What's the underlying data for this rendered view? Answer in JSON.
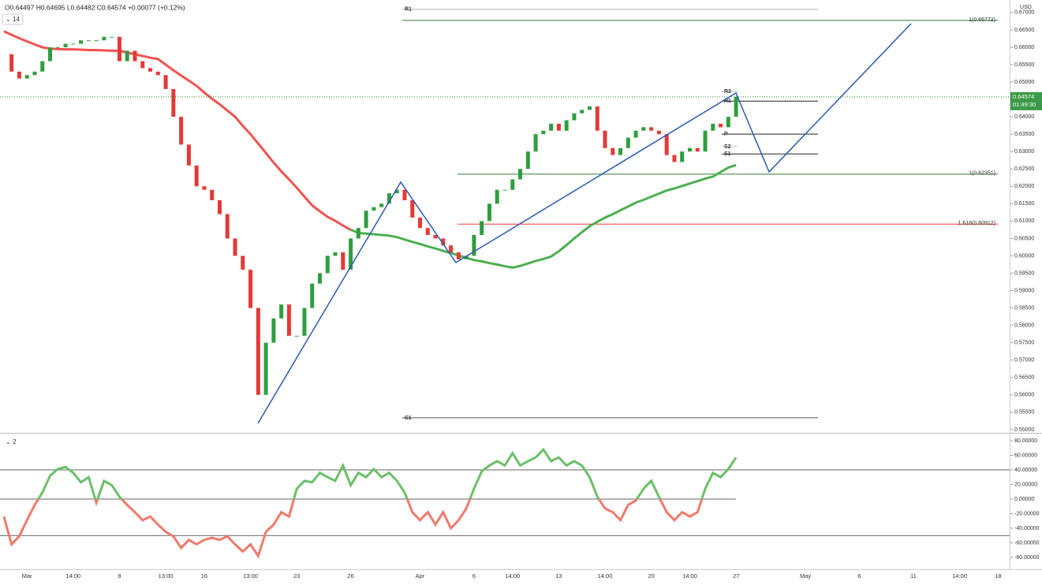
{
  "header": {
    "ohlc": "O0.64497 H0.64695 L0.64482 C0.64574 +0.00077 (+0.12%)",
    "pane1_label": "14",
    "pane2_label": "2"
  },
  "chart_data": [
    {
      "type": "candlestick",
      "categories": [
        null,
        null,
        null,
        "Mar",
        null,
        null,
        null,
        null,
        null,
        "14:00",
        null,
        null,
        null,
        null,
        null,
        "9",
        null,
        null,
        null,
        null,
        null,
        "13:00",
        null,
        null,
        null,
        null,
        "16",
        null,
        null,
        null,
        null,
        null,
        "13:00",
        null,
        null,
        null,
        null,
        null,
        "23",
        null,
        null,
        null,
        null,
        null,
        null,
        "26",
        null,
        null,
        null,
        null,
        null,
        null,
        null,
        null,
        "Apr",
        null,
        null,
        null,
        null,
        null,
        null,
        "6",
        null,
        null,
        null,
        null,
        "14:00",
        null,
        null,
        null,
        null,
        null,
        "13",
        null,
        null,
        null,
        null,
        null,
        "14:00",
        null,
        null,
        null,
        null,
        null,
        "20",
        null,
        null,
        null,
        null,
        "14:00",
        null,
        null,
        null,
        null,
        null,
        "27",
        null,
        null,
        null,
        null,
        null,
        null,
        null,
        null,
        "May",
        null,
        null,
        null,
        null,
        null,
        null,
        "6",
        null,
        null,
        null,
        null,
        null,
        null,
        "11",
        null,
        null,
        null,
        null,
        null,
        "14:00",
        null,
        null,
        null,
        null,
        "18",
        null
      ],
      "up_color": "#2e9e3e",
      "down_color": "#e53935",
      "series": [
        {
          "values": [
            0.658,
            0.653,
            0.651,
            0.652,
            0.653,
            0.656,
            0.66,
            0.66,
            0.661,
            0.661,
            0.662,
            0.662,
            0.662,
            0.663,
            0.663,
            0.656,
            0.659,
            0.656,
            0.654,
            0.653,
            0.652,
            0.648,
            0.64,
            0.632,
            0.626,
            0.62,
            0.619,
            0.616,
            0.612,
            0.605,
            0.6,
            0.596,
            0.585,
            0.56,
            0.575,
            0.582,
            0.586,
            0.577,
            0.577,
            0.585,
            0.592,
            0.595,
            0.6,
            0.601,
            0.596,
            0.605,
            0.608,
            0.613,
            0.614,
            0.615,
            0.618,
            0.619,
            0.616,
            0.611,
            0.608,
            0.606,
            0.605,
            0.603,
            0.601,
            0.599,
            0.6,
            0.606,
            0.61,
            0.615,
            0.619,
            0.619,
            0.622,
            0.625,
            0.63,
            0.635,
            0.636,
            0.638,
            0.636,
            0.639,
            0.641,
            0.642,
            0.643,
            0.636,
            0.631,
            0.629,
            0.631,
            0.634,
            0.636,
            0.637,
            0.636,
            0.635,
            0.629,
            0.627,
            0.63,
            0.631,
            0.63,
            0.636,
            0.638,
            0.637,
            0.64,
            0.6457,
            null,
            null,
            null,
            null,
            null,
            null,
            null,
            null,
            null,
            null,
            null,
            null,
            null,
            null,
            null,
            null,
            null,
            null,
            null,
            null,
            null,
            null,
            null,
            null,
            null,
            null,
            null,
            null,
            null,
            null,
            null,
            null,
            null,
            null,
            null
          ]
        },
        {
          "color": "#ef5350",
          "values": [
            0.6646,
            0.6636,
            0.6626,
            0.6617,
            0.6608,
            0.66,
            0.6596,
            0.6595,
            0.6594,
            0.6594,
            0.6593,
            0.6592,
            0.6592,
            0.6591,
            0.659,
            0.659,
            0.6585,
            0.658,
            0.6575,
            0.657,
            0.6566,
            0.655,
            0.6534,
            0.6519,
            0.6504,
            0.6489,
            0.647,
            0.6452,
            0.6436,
            0.6418,
            0.64,
            0.6374,
            0.635,
            0.6323,
            0.6296,
            0.6268,
            0.6243,
            0.622,
            0.6196,
            0.617,
            0.6145,
            0.6128,
            0.6112,
            0.6101,
            0.6087,
            0.6075,
            null,
            null,
            null,
            null,
            null,
            null,
            null,
            null,
            null,
            null,
            null,
            null,
            null,
            null,
            null,
            null,
            null,
            null,
            null,
            null,
            null,
            null,
            null,
            null,
            null,
            null,
            null,
            null,
            null,
            null,
            null,
            null,
            null,
            null,
            null,
            null,
            null,
            null,
            null,
            null,
            null,
            null,
            null,
            null,
            null,
            null,
            null,
            null,
            null,
            null,
            null,
            null,
            null,
            null,
            null,
            null,
            null,
            null,
            null,
            null,
            null,
            null,
            null,
            null,
            null,
            null,
            null,
            null,
            null,
            null,
            null,
            null,
            null,
            null,
            null,
            null,
            null,
            null,
            null,
            null,
            null,
            null,
            null,
            null,
            null
          ]
        },
        {
          "color": "#4caf50",
          "values": [
            null,
            null,
            null,
            null,
            null,
            null,
            null,
            null,
            null,
            null,
            null,
            null,
            null,
            null,
            null,
            null,
            null,
            null,
            null,
            null,
            null,
            null,
            null,
            null,
            null,
            null,
            null,
            null,
            null,
            null,
            null,
            null,
            null,
            null,
            null,
            null,
            null,
            null,
            null,
            null,
            null,
            null,
            null,
            null,
            null,
            0.6075,
            0.6066,
            0.6064,
            0.6062,
            0.606,
            0.6058,
            0.6054,
            0.6047,
            0.604,
            0.6034,
            0.6027,
            0.6021,
            0.6014,
            0.6008,
            0.6001,
            0.5994,
            0.5988,
            0.5984,
            0.5979,
            0.5975,
            0.597,
            0.5966,
            0.5971,
            0.5978,
            0.5985,
            0.5991,
            0.5998,
            0.6013,
            0.6031,
            0.605,
            0.6068,
            0.6085,
            0.6098,
            0.611,
            0.612,
            0.6131,
            0.6142,
            0.6153,
            0.6161,
            0.617,
            0.6179,
            0.6188,
            0.6194,
            0.6201,
            0.6208,
            0.6215,
            0.6222,
            0.6228,
            0.6241,
            0.6254,
            0.6261,
            null,
            null,
            null,
            null,
            null,
            null,
            null,
            null,
            null,
            null,
            null,
            null,
            null,
            null,
            null,
            null,
            null,
            null,
            null,
            null,
            null,
            null,
            null,
            null,
            null,
            null,
            null,
            null,
            null,
            null,
            null,
            null,
            null,
            null,
            null
          ]
        }
      ],
      "ylim": [
        0.5493,
        0.6736
      ],
      "yticks": [
        {
          "value": 0.55,
          "label": "0.55000"
        },
        {
          "value": 0.555,
          "label": "0.55500"
        },
        {
          "value": 0.56,
          "label": "0.56000"
        },
        {
          "value": 0.565,
          "label": "0.56500"
        },
        {
          "value": 0.57,
          "label": "0.57000"
        },
        {
          "value": 0.575,
          "label": "0.57500"
        },
        {
          "value": 0.58,
          "label": "0.58000"
        },
        {
          "value": 0.585,
          "label": "0.58500"
        },
        {
          "value": 0.59,
          "label": "0.59000"
        },
        {
          "value": 0.595,
          "label": "0.59500"
        },
        {
          "value": 0.6,
          "label": "0.60000"
        },
        {
          "value": 0.605,
          "label": "0.60500"
        },
        {
          "value": 0.61,
          "label": "0.61000"
        },
        {
          "value": 0.615,
          "label": "0.61500"
        },
        {
          "value": 0.62,
          "label": "0.62000"
        },
        {
          "value": 0.625,
          "label": "0.62500"
        },
        {
          "value": 0.63,
          "label": "0.63000"
        },
        {
          "value": 0.635,
          "label": "0.63500"
        },
        {
          "value": 0.64,
          "label": "0.64000"
        },
        {
          "value": 0.645,
          "label": "0.64500"
        },
        {
          "value": 0.65,
          "label": "0.65000"
        },
        {
          "value": 0.655,
          "label": "0.65500"
        },
        {
          "value": 0.66,
          "label": "0.66000"
        },
        {
          "value": 0.665,
          "label": "0.66500"
        },
        {
          "value": 0.67,
          "label": "0.67000"
        }
      ],
      "axis_label": "USD",
      "last_price": 0.64574,
      "countdown": "01:49:30",
      "levels": [
        {
          "label": "R1",
          "value": 0.6709,
          "color": "#aaaaaa"
        },
        {
          "label": "1(0.66772)",
          "value": 0.66772,
          "color": "#2e7d32"
        },
        {
          "label": "1(0.62351)",
          "value": 0.62351,
          "color": "#2e7d32"
        },
        {
          "label": "1.618(0.60912)",
          "value": 0.60912,
          "color": "#e53935"
        },
        {
          "label": "S1",
          "value": 0.5534,
          "color": "#555555"
        },
        {
          "label": "R3",
          "value": 0.6473,
          "color": "#bbbbbb"
        },
        {
          "label": "R1",
          "value": 0.6445,
          "color": "#222222"
        },
        {
          "label": "P",
          "value": 0.635,
          "color": "#222222"
        },
        {
          "label": "S2",
          "value": 0.6314,
          "color": "#bbbbbb"
        },
        {
          "label": "S1",
          "value": 0.6293,
          "color": "#222222"
        }
      ]
    },
    {
      "type": "line",
      "values": [
        -24,
        -62,
        -51,
        -29,
        -8,
        9,
        32,
        41,
        44,
        36,
        23,
        30,
        -5,
        25,
        19,
        3,
        -8,
        -18,
        -29,
        -24,
        -35,
        -45,
        -51,
        -67,
        -56,
        -62,
        -56,
        -53,
        -56,
        -51,
        -62,
        -72,
        -62,
        -78,
        -45,
        -35,
        -18,
        -24,
        14,
        25,
        23,
        36,
        30,
        25,
        46,
        19,
        36,
        30,
        41,
        30,
        36,
        25,
        9,
        -18,
        -29,
        -18,
        -35,
        -18,
        -40,
        -29,
        -13,
        14,
        38,
        46,
        52,
        46,
        63,
        46,
        52,
        57,
        68,
        52,
        57,
        46,
        52,
        46,
        30,
        3,
        -13,
        -18,
        -29,
        -8,
        -2,
        14,
        25,
        3,
        -18,
        -29,
        -18,
        -24,
        -18,
        14,
        36,
        30,
        41,
        57,
        null,
        null,
        null,
        null,
        null,
        null,
        null,
        null,
        null,
        null,
        null,
        null,
        null,
        null,
        null,
        null,
        null,
        null,
        null,
        null,
        null,
        null,
        null,
        null,
        null,
        null,
        null,
        null,
        null,
        null,
        null,
        null,
        null,
        null,
        null
      ],
      "positive_color": "#6cbf6a",
      "negative_color": "#ef7a6b",
      "ylim": [
        -96.2,
        88.6
      ],
      "yticks": [
        {
          "value": -80,
          "label": "-80.00000"
        },
        {
          "value": -60,
          "label": "-60.00000"
        },
        {
          "value": -40,
          "label": "-40.00000"
        },
        {
          "value": -20,
          "label": "-20.00000"
        },
        {
          "value": 0,
          "label": "0.00000"
        },
        {
          "value": 20,
          "label": "20.00000"
        },
        {
          "value": 40,
          "label": "40.00000"
        },
        {
          "value": 60,
          "label": "60.00000"
        },
        {
          "value": 80,
          "label": "80.00000"
        }
      ],
      "levels": [
        40,
        0,
        -50
      ]
    }
  ]
}
